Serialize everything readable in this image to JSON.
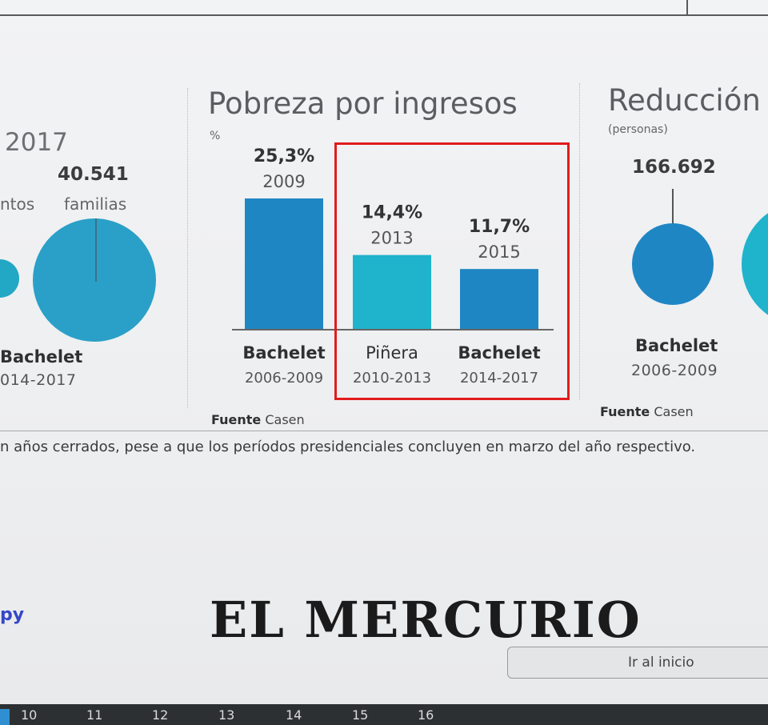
{
  "left_panel": {
    "year_fragment": "2017",
    "count": "40.541",
    "count_label": "familias",
    "left_label_fragment": "ntos",
    "president_fragment": "Bachelet",
    "period_fragment": "014-2017"
  },
  "chart_data": {
    "type": "bar",
    "title": "Pobreza por ingresos",
    "unit": "%",
    "categories": [
      "Bachelet 2006-2009",
      "Piñera 2010-2013",
      "Bachelet 2014-2017"
    ],
    "values": [
      25.3,
      14.4,
      11.7
    ],
    "value_labels": [
      "25,3%",
      "14,4%",
      "11,7%"
    ],
    "years": [
      "2009",
      "2013",
      "2015"
    ],
    "presidents": [
      "Bachelet",
      "Piñera",
      "Bachelet"
    ],
    "periods": [
      "2006-2009",
      "2010-2013",
      "2014-2017"
    ],
    "colors": [
      "#1f86c4",
      "#1fb3cc",
      "#1f86c4"
    ],
    "source_label": "Fuente",
    "source_name": "Casen"
  },
  "right_panel": {
    "title_fragment": "Reducción a",
    "unit": "(personas)",
    "value": "166.692",
    "president": "Bachelet",
    "period": "2006-2009",
    "source_label": "Fuente",
    "source_name": "Casen"
  },
  "footnote": "n años cerrados, pese a que los períodos presidenciales concluyen en marzo del año respectivo.",
  "masthead": "EL MERCURIO",
  "home_button": "Ir al inicio",
  "link_fragment": "py",
  "pages": [
    "10",
    "11",
    "12",
    "13",
    "14",
    "15",
    "16"
  ],
  "colors": {
    "bar_dark": "#1f86c4",
    "bar_teal": "#1fb3cc",
    "highlight": "#e21c1c"
  }
}
